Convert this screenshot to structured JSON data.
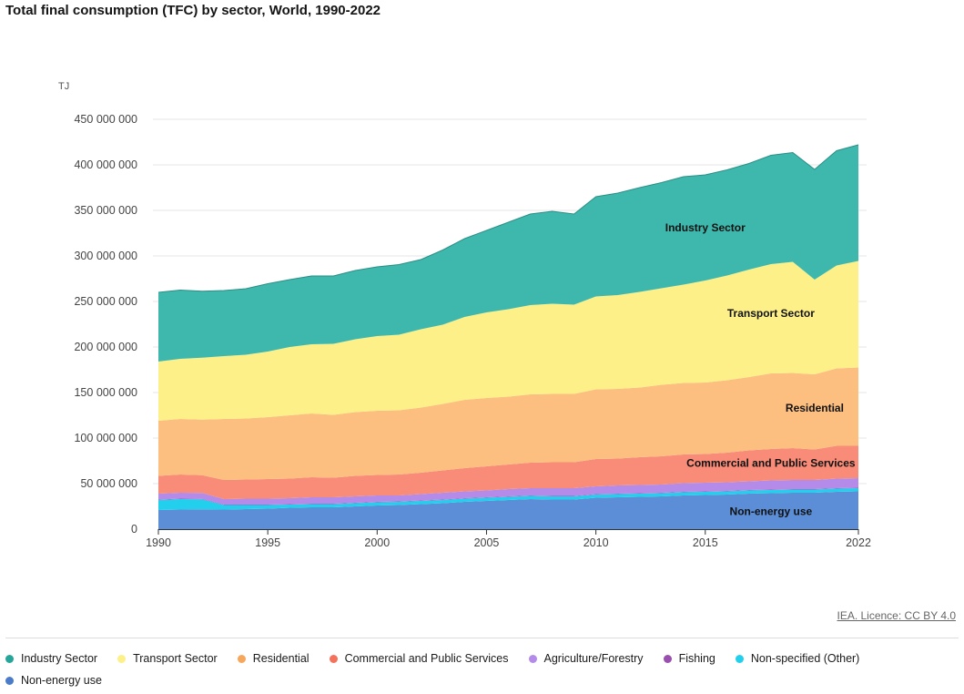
{
  "title": "Total final consumption (TFC) by sector, World, 1990-2022",
  "credit": "IEA. Licence: CC BY 4.0",
  "chart_data": {
    "type": "area",
    "stacked": true,
    "title": "Total final consumption (TFC) by sector, World, 1990-2022",
    "ylabel": "TJ",
    "xlabel": "",
    "ylim": [
      0,
      450000000
    ],
    "y_ticks": [
      0,
      50000000,
      100000000,
      150000000,
      200000000,
      250000000,
      300000000,
      350000000,
      400000000,
      450000000
    ],
    "y_tick_labels": [
      "0",
      "50 000 000",
      "100 000 000",
      "150 000 000",
      "200 000 000",
      "250 000 000",
      "300 000 000",
      "350 000 000",
      "400 000 000",
      "450 000 000"
    ],
    "x_ticks": [
      1990,
      1995,
      2000,
      2005,
      2010,
      2015,
      2022
    ],
    "x_tick_labels": [
      "1990",
      "1995",
      "2000",
      "2005",
      "2010",
      "2015",
      "2022"
    ],
    "grid": true,
    "legend_position": "bottom",
    "x": [
      1990,
      1991,
      1992,
      1993,
      1994,
      1995,
      1996,
      1997,
      1998,
      1999,
      2000,
      2001,
      2002,
      2003,
      2004,
      2005,
      2006,
      2007,
      2008,
      2009,
      2010,
      2011,
      2012,
      2013,
      2014,
      2015,
      2016,
      2017,
      2018,
      2019,
      2020,
      2021,
      2022
    ],
    "series": [
      {
        "name": "Non-energy use",
        "color": "#5b8ed6",
        "label": "Non-energy use",
        "values": [
          21000000,
          21500000,
          21800000,
          21500000,
          22000000,
          22500000,
          23500000,
          24000000,
          24000000,
          25000000,
          26000000,
          26500000,
          27500000,
          28500000,
          30000000,
          31000000,
          32000000,
          33000000,
          32500000,
          32500000,
          34500000,
          35000000,
          35500000,
          36000000,
          37000000,
          37500000,
          38000000,
          39000000,
          39500000,
          40000000,
          40000000,
          41000000,
          41500000
        ]
      },
      {
        "name": "Non-specified (Other)",
        "color": "#22d0ee",
        "label": "",
        "values": [
          11000000,
          11500000,
          11000000,
          5000000,
          4500000,
          4000000,
          3500000,
          3500000,
          3500000,
          3500000,
          3500000,
          3500000,
          3500000,
          3500000,
          3500000,
          3500000,
          3500000,
          3500000,
          3500000,
          3500000,
          3500000,
          3500000,
          3500000,
          3500000,
          3500000,
          3500000,
          3500000,
          3500000,
          3500000,
          3500000,
          3500000,
          3500000,
          3500000
        ]
      },
      {
        "name": "Fishing",
        "color": "#a65dbb",
        "label": "",
        "values": [
          500000,
          500000,
          500000,
          500000,
          500000,
          500000,
          500000,
          500000,
          500000,
          500000,
          500000,
          500000,
          500000,
          500000,
          500000,
          500000,
          500000,
          500000,
          500000,
          500000,
          500000,
          500000,
          500000,
          500000,
          500000,
          500000,
          500000,
          500000,
          500000,
          500000,
          500000,
          500000,
          500000
        ]
      },
      {
        "name": "Agriculture/Forestry",
        "color": "#b48be8",
        "label": "",
        "values": [
          6500000,
          6500000,
          6500000,
          6000000,
          6500000,
          6500000,
          6500000,
          7000000,
          7000000,
          7000000,
          7000000,
          6500000,
          7000000,
          7500000,
          7500000,
          7500000,
          8000000,
          8000000,
          8500000,
          8500000,
          8500000,
          9000000,
          9000000,
          9000000,
          9500000,
          9500000,
          9500000,
          9500000,
          10000000,
          10000000,
          10000000,
          10500000,
          10500000
        ]
      },
      {
        "name": "Commercial and Public Services",
        "color": "#f88c78",
        "label": "Commercial and Public Services",
        "values": [
          19500000,
          20000000,
          19500000,
          21000000,
          21000000,
          21500000,
          21500000,
          22000000,
          21500000,
          22500000,
          22500000,
          23000000,
          23500000,
          24500000,
          25500000,
          26500000,
          27000000,
          28000000,
          28500000,
          28500000,
          30000000,
          29500000,
          30500000,
          31000000,
          31500000,
          31500000,
          32500000,
          34000000,
          34500000,
          35000000,
          33500000,
          36000000,
          35500000
        ]
      },
      {
        "name": "Residential",
        "color": "#fdbf7f",
        "label": "Residential",
        "values": [
          60500000,
          61000000,
          61000000,
          67000000,
          67000000,
          68000000,
          69500000,
          70000000,
          69000000,
          70000000,
          70500000,
          70500000,
          71500000,
          73000000,
          75000000,
          75000000,
          74500000,
          75000000,
          75000000,
          75000000,
          76500000,
          76500000,
          76500000,
          78500000,
          78500000,
          78500000,
          79500000,
          80500000,
          83000000,
          82500000,
          82500000,
          85000000,
          86000000
        ]
      },
      {
        "name": "Transport Sector",
        "color": "#fdf089",
        "label": "Transport Sector",
        "values": [
          65000000,
          66000000,
          68000000,
          69000000,
          70000000,
          72000000,
          75000000,
          76000000,
          78000000,
          80000000,
          82000000,
          83000000,
          86000000,
          87000000,
          91000000,
          94000000,
          96000000,
          98000000,
          99000000,
          98000000,
          102000000,
          103000000,
          105000000,
          106000000,
          108000000,
          112000000,
          115000000,
          118000000,
          120000000,
          122000000,
          104000000,
          113000000,
          117000000
        ]
      },
      {
        "name": "Industry Sector",
        "color": "#3eb8ad",
        "label": "Industry Sector",
        "values": [
          76000000,
          75500000,
          73000000,
          72000000,
          72500000,
          74500000,
          74000000,
          75000000,
          74500000,
          75500000,
          76000000,
          77000000,
          76500000,
          82000000,
          86000000,
          90000000,
          95500000,
          100000000,
          101500000,
          99500000,
          109500000,
          112000000,
          114500000,
          116000000,
          118500000,
          116000000,
          116000000,
          116500000,
          119500000,
          120000000,
          121000000,
          126000000,
          127500000
        ]
      }
    ]
  },
  "legend": [
    {
      "label": "Industry Sector",
      "color": "#26a69a"
    },
    {
      "label": "Transport Sector",
      "color": "#fdf089"
    },
    {
      "label": "Residential",
      "color": "#f6a75c"
    },
    {
      "label": "Commercial and Public Services",
      "color": "#f4725a"
    },
    {
      "label": "Agriculture/Forestry",
      "color": "#b48be8"
    },
    {
      "label": "Fishing",
      "color": "#9a4fb0"
    },
    {
      "label": "Non-specified (Other)",
      "color": "#22d0ee"
    },
    {
      "label": "Non-energy use",
      "color": "#4a7cc9"
    }
  ]
}
